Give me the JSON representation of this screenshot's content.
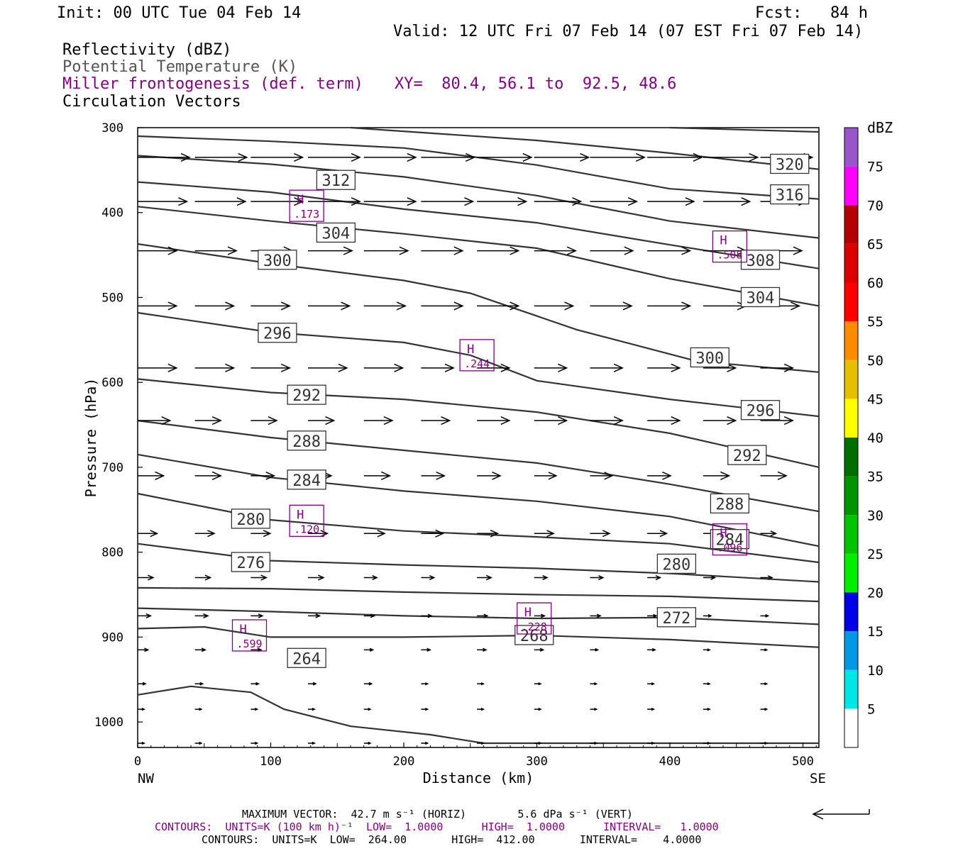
{
  "header": {
    "init": "Init: 00 UTC Tue 04 Feb 14",
    "fcst": "Fcst:   84 h",
    "valid": "Valid: 12 UTC Fri 07 Feb 14 (07 EST Fri 07 Feb 14)",
    "field1": "Reflectivity (dBZ)",
    "field2": "Potential Temperature (K)",
    "field3": "Miller frontogenesis (def. term)",
    "xy": "XY=  80.4, 56.1 to  92.5, 48.6",
    "field4": "Circulation Vectors"
  },
  "colorbar": {
    "title": "dBZ",
    "labels": [
      "5",
      "10",
      "15",
      "20",
      "25",
      "30",
      "35",
      "40",
      "45",
      "50",
      "55",
      "60",
      "65",
      "70",
      "75"
    ],
    "colors": [
      "#ffffff",
      "#00e5e5",
      "#0099e6",
      "#0000e6",
      "#00ee00",
      "#00c400",
      "#009400",
      "#006e00",
      "#ffff00",
      "#e6c000",
      "#ff8c00",
      "#ff0000",
      "#dd0000",
      "#b40000",
      "#ff00ff",
      "#9955c9"
    ]
  },
  "footer": {
    "max_vector": "MAXIMUM VECTOR:  42.7 m s⁻¹ (HORIZ)        5.6 dPa s⁻¹ (VERT)",
    "contours1": "CONTOURS:  UNITS=K (100 km h)⁻¹  LOW=  1.0000      HIGH=  1.0000      INTERVAL=   1.0000",
    "contours2": "CONTOURS:  UNITS=K  LOW=  264.00       HIGH=  412.00       INTERVAL=    4.0000"
  },
  "chart_data": {
    "type": "cross-section",
    "xlabel": "Distance (km)",
    "ylabel": "Pressure (hPa)",
    "xlim": [
      0,
      512
    ],
    "ylim": [
      1030,
      300
    ],
    "x_ticks": [
      0,
      100,
      200,
      300,
      400,
      500
    ],
    "y_ticks": [
      300,
      400,
      500,
      600,
      700,
      800,
      900,
      1000
    ],
    "end_labels": {
      "left": "NW",
      "right": "SE"
    },
    "theta_lines": [
      {
        "label": "264",
        "pts": [
          [
            0,
            968
          ],
          [
            40,
            958
          ],
          [
            85,
            965
          ],
          [
            110,
            985
          ],
          [
            160,
            1005
          ],
          [
            220,
            1015
          ],
          [
            260,
            1025
          ],
          [
            512,
            1025
          ]
        ]
      },
      {
        "label": "268",
        "pts": [
          [
            0,
            890
          ],
          [
            50,
            888
          ],
          [
            100,
            900
          ],
          [
            200,
            900
          ],
          [
            300,
            898
          ],
          [
            400,
            903
          ],
          [
            512,
            912
          ]
        ]
      },
      {
        "label": "272",
        "pts": [
          [
            0,
            866
          ],
          [
            100,
            870
          ],
          [
            200,
            875
          ],
          [
            300,
            878
          ],
          [
            400,
            877
          ],
          [
            512,
            885
          ]
        ]
      },
      {
        "label": "",
        "pts": [
          [
            0,
            842
          ],
          [
            100,
            843
          ],
          [
            200,
            847
          ],
          [
            300,
            850
          ],
          [
            400,
            852
          ],
          [
            512,
            858
          ]
        ]
      },
      {
        "label": "276",
        "pts": [
          [
            0,
            790
          ],
          [
            100,
            810
          ],
          [
            200,
            815
          ],
          [
            300,
            819
          ],
          [
            400,
            825
          ],
          [
            512,
            835
          ]
        ]
      },
      {
        "label": "280",
        "pts": [
          [
            0,
            731
          ],
          [
            100,
            762
          ],
          [
            200,
            775
          ],
          [
            300,
            782
          ],
          [
            400,
            790
          ],
          [
            512,
            812
          ]
        ]
      },
      {
        "label": "284",
        "pts": [
          [
            0,
            685
          ],
          [
            100,
            712
          ],
          [
            200,
            728
          ],
          [
            300,
            740
          ],
          [
            400,
            758
          ],
          [
            512,
            793
          ]
        ]
      },
      {
        "label": "288",
        "pts": [
          [
            0,
            645
          ],
          [
            100,
            665
          ],
          [
            200,
            680
          ],
          [
            300,
            695
          ],
          [
            400,
            720
          ],
          [
            512,
            752
          ]
        ]
      },
      {
        "label": "292",
        "pts": [
          [
            0,
            596
          ],
          [
            100,
            612
          ],
          [
            200,
            620
          ],
          [
            300,
            635
          ],
          [
            400,
            660
          ],
          [
            512,
            700
          ]
        ]
      },
      {
        "label": "296",
        "pts": [
          [
            0,
            518
          ],
          [
            100,
            541
          ],
          [
            200,
            553
          ],
          [
            250,
            568
          ],
          [
            300,
            598
          ],
          [
            400,
            620
          ],
          [
            512,
            640
          ]
        ]
      },
      {
        "label": "300",
        "pts": [
          [
            0,
            437
          ],
          [
            100,
            460
          ],
          [
            200,
            480
          ],
          [
            250,
            495
          ],
          [
            330,
            538
          ],
          [
            420,
            575
          ],
          [
            512,
            588
          ]
        ]
      },
      {
        "label": "304",
        "pts": [
          [
            0,
            393
          ],
          [
            100,
            410
          ],
          [
            200,
            425
          ],
          [
            300,
            442
          ],
          [
            400,
            478
          ],
          [
            512,
            510
          ]
        ]
      },
      {
        "label": "308",
        "pts": [
          [
            0,
            364
          ],
          [
            100,
            376
          ],
          [
            200,
            396
          ],
          [
            300,
            412
          ],
          [
            400,
            438
          ],
          [
            512,
            466
          ]
        ]
      },
      {
        "label": "312",
        "pts": [
          [
            0,
            333
          ],
          [
            100,
            343
          ],
          [
            200,
            358
          ],
          [
            300,
            380
          ],
          [
            400,
            410
          ],
          [
            512,
            430
          ]
        ]
      },
      {
        "label": "316",
        "pts": [
          [
            0,
            310
          ],
          [
            100,
            316
          ],
          [
            200,
            324
          ],
          [
            300,
            344
          ],
          [
            400,
            372
          ],
          [
            512,
            384
          ]
        ]
      },
      {
        "label": "320",
        "pts": [
          [
            160,
            300
          ],
          [
            300,
            315
          ],
          [
            400,
            330
          ],
          [
            512,
            349
          ]
        ]
      },
      {
        "label": "",
        "pts": [
          [
            400,
            300
          ],
          [
            512,
            305
          ]
        ]
      }
    ],
    "theta_labels": [
      {
        "text": "264",
        "x": 127,
        "y": 925
      },
      {
        "text": "268",
        "x": 298,
        "y": 898
      },
      {
        "text": "272",
        "x": 405,
        "y": 877
      },
      {
        "text": "276",
        "x": 85,
        "y": 812
      },
      {
        "text": "280",
        "x": 85,
        "y": 761
      },
      {
        "text": "280",
        "x": 405,
        "y": 814
      },
      {
        "text": "284",
        "x": 127,
        "y": 715
      },
      {
        "text": "284",
        "x": 445,
        "y": 785
      },
      {
        "text": "288",
        "x": 127,
        "y": 669
      },
      {
        "text": "288",
        "x": 445,
        "y": 743
      },
      {
        "text": "292",
        "x": 127,
        "y": 615
      },
      {
        "text": "292",
        "x": 458,
        "y": 686
      },
      {
        "text": "296",
        "x": 105,
        "y": 542
      },
      {
        "text": "296",
        "x": 468,
        "y": 633
      },
      {
        "text": "300",
        "x": 105,
        "y": 456
      },
      {
        "text": "300",
        "x": 430,
        "y": 571
      },
      {
        "text": "304",
        "x": 149,
        "y": 424
      },
      {
        "text": "304",
        "x": 468,
        "y": 500
      },
      {
        "text": "308",
        "x": 468,
        "y": 456
      },
      {
        "text": "312",
        "x": 149,
        "y": 362
      },
      {
        "text": "316",
        "x": 490,
        "y": 379
      },
      {
        "text": "320",
        "x": 490,
        "y": 343
      }
    ],
    "frontogenesis_maxima": [
      {
        "label": "H",
        "value": ".173",
        "x": 127,
        "y": 392
      },
      {
        "label": "H",
        "value": ".508",
        "x": 445,
        "y": 440
      },
      {
        "label": "H",
        "value": ".244",
        "x": 255,
        "y": 568
      },
      {
        "label": "H",
        "value": ".120",
        "x": 127,
        "y": 763
      },
      {
        "label": "H",
        "value": ".096",
        "x": 445,
        "y": 785
      },
      {
        "label": "H",
        "value": ".228",
        "x": 298,
        "y": 878
      },
      {
        "label": "H",
        "value": ".599",
        "x": 84,
        "y": 898
      }
    ],
    "vectors": {
      "columns_km": [
        0,
        43,
        85,
        128,
        170,
        213,
        255,
        298,
        340,
        383,
        425,
        468
      ],
      "levels_hpa": [
        335,
        387,
        445,
        510,
        583,
        645,
        710,
        778,
        830,
        875,
        915,
        955,
        985,
        1025
      ],
      "u_mps": [
        [
          40,
          40,
          40,
          40,
          40,
          41,
          42,
          42,
          42,
          42,
          42,
          40
        ],
        [
          38,
          39,
          40,
          40,
          40,
          40,
          38,
          36,
          36,
          36,
          36,
          36
        ],
        [
          30,
          32,
          32,
          34,
          34,
          32,
          32,
          32,
          33,
          33,
          33,
          32
        ],
        [
          30,
          30,
          30,
          32,
          32,
          32,
          32,
          30,
          32,
          33,
          33,
          30
        ],
        [
          30,
          30,
          30,
          30,
          30,
          25,
          25,
          25,
          25,
          25,
          25,
          25
        ],
        [
          25,
          20,
          20,
          20,
          22,
          22,
          25,
          25,
          25,
          25,
          25,
          25
        ],
        [
          20,
          20,
          18,
          18,
          20,
          18,
          18,
          17,
          17,
          18,
          20,
          20
        ],
        [
          15,
          15,
          15,
          15,
          16,
          17,
          16,
          15,
          15,
          15,
          14,
          12
        ],
        [
          12,
          12,
          12,
          12,
          10,
          10,
          11,
          10,
          10,
          10,
          9,
          9
        ],
        [
          10,
          10,
          9,
          9,
          8,
          8,
          8,
          8,
          8,
          7,
          6,
          6
        ],
        [
          8,
          8,
          8,
          8,
          7,
          7,
          7,
          7,
          6,
          6,
          5,
          5
        ],
        [
          6,
          6,
          6,
          6,
          6,
          5,
          5,
          5,
          5,
          5,
          5,
          5
        ],
        [
          5,
          5,
          5,
          5,
          5,
          5,
          5,
          5,
          5,
          5,
          5,
          5
        ],
        [
          5,
          5,
          5,
          5,
          5,
          5,
          5,
          5,
          5,
          5,
          5,
          5
        ]
      ],
      "reference_vector": "42.7 m s-1 (HORIZ)"
    },
    "colors": {
      "theta": "#333333",
      "fronto": "#800080",
      "vectors": "#000000",
      "labels": "#333333"
    }
  }
}
